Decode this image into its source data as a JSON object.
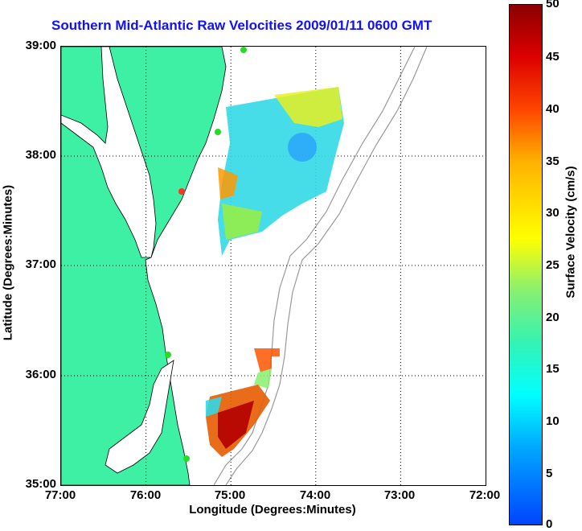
{
  "title": "Southern Mid-Atlantic Raw Velocities 2009/01/11 0600 GMT",
  "axes": {
    "xlabel": "Longitude (Degrees:Minutes)",
    "ylabel": "Latitude (Degrees:Minutes)",
    "xticks": [
      "77:00",
      "76:00",
      "75:00",
      "74:00",
      "73:00",
      "72:00"
    ],
    "yticks": [
      "39:00",
      "38:00",
      "37:00",
      "36:00",
      "35:00"
    ]
  },
  "colorbar": {
    "label": "Surface Velocity (cm/s)",
    "ticks": [
      "50",
      "45",
      "40",
      "35",
      "30",
      "25",
      "20",
      "15",
      "10",
      "5",
      "0"
    ],
    "range": [
      0,
      50
    ]
  },
  "colors": {
    "land": "#3df0a4",
    "land_outline": "#000000",
    "bathymetry": "#999999",
    "title_text": "#1010ff",
    "site_marker": "#22dd22",
    "site_marker_alt": "#ff3322"
  },
  "map": {
    "lon_range": [
      -77,
      -72
    ],
    "lat_range": [
      35,
      39
    ],
    "grid": "dotted"
  }
}
